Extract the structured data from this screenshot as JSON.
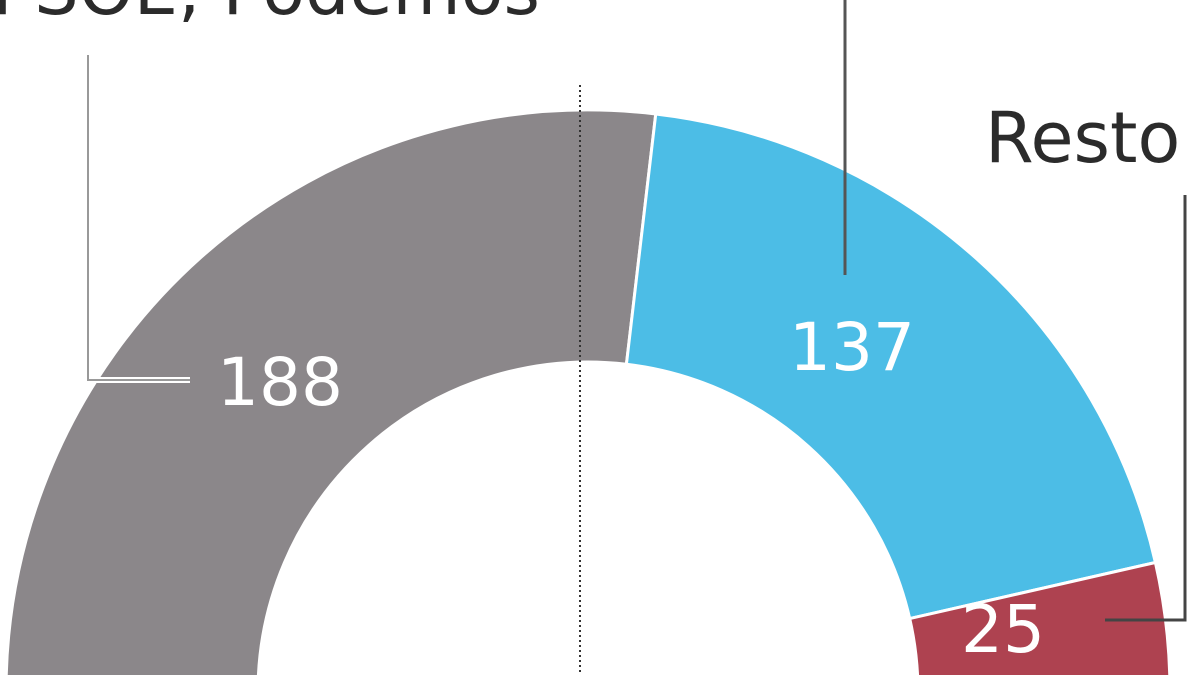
{
  "chart_data": {
    "type": "pie",
    "subtype": "half-donut",
    "categories": [
      "PSOE, Podemos",
      "",
      "Resto"
    ],
    "values": [
      188,
      137,
      25
    ],
    "colors": [
      "#8b878a",
      "#4cbde6",
      "#ae4250"
    ],
    "data_labels": [
      "188",
      "137",
      "25"
    ],
    "annotations": {
      "group_left": "PSOE, Podemos",
      "group_right": "Resto"
    }
  }
}
